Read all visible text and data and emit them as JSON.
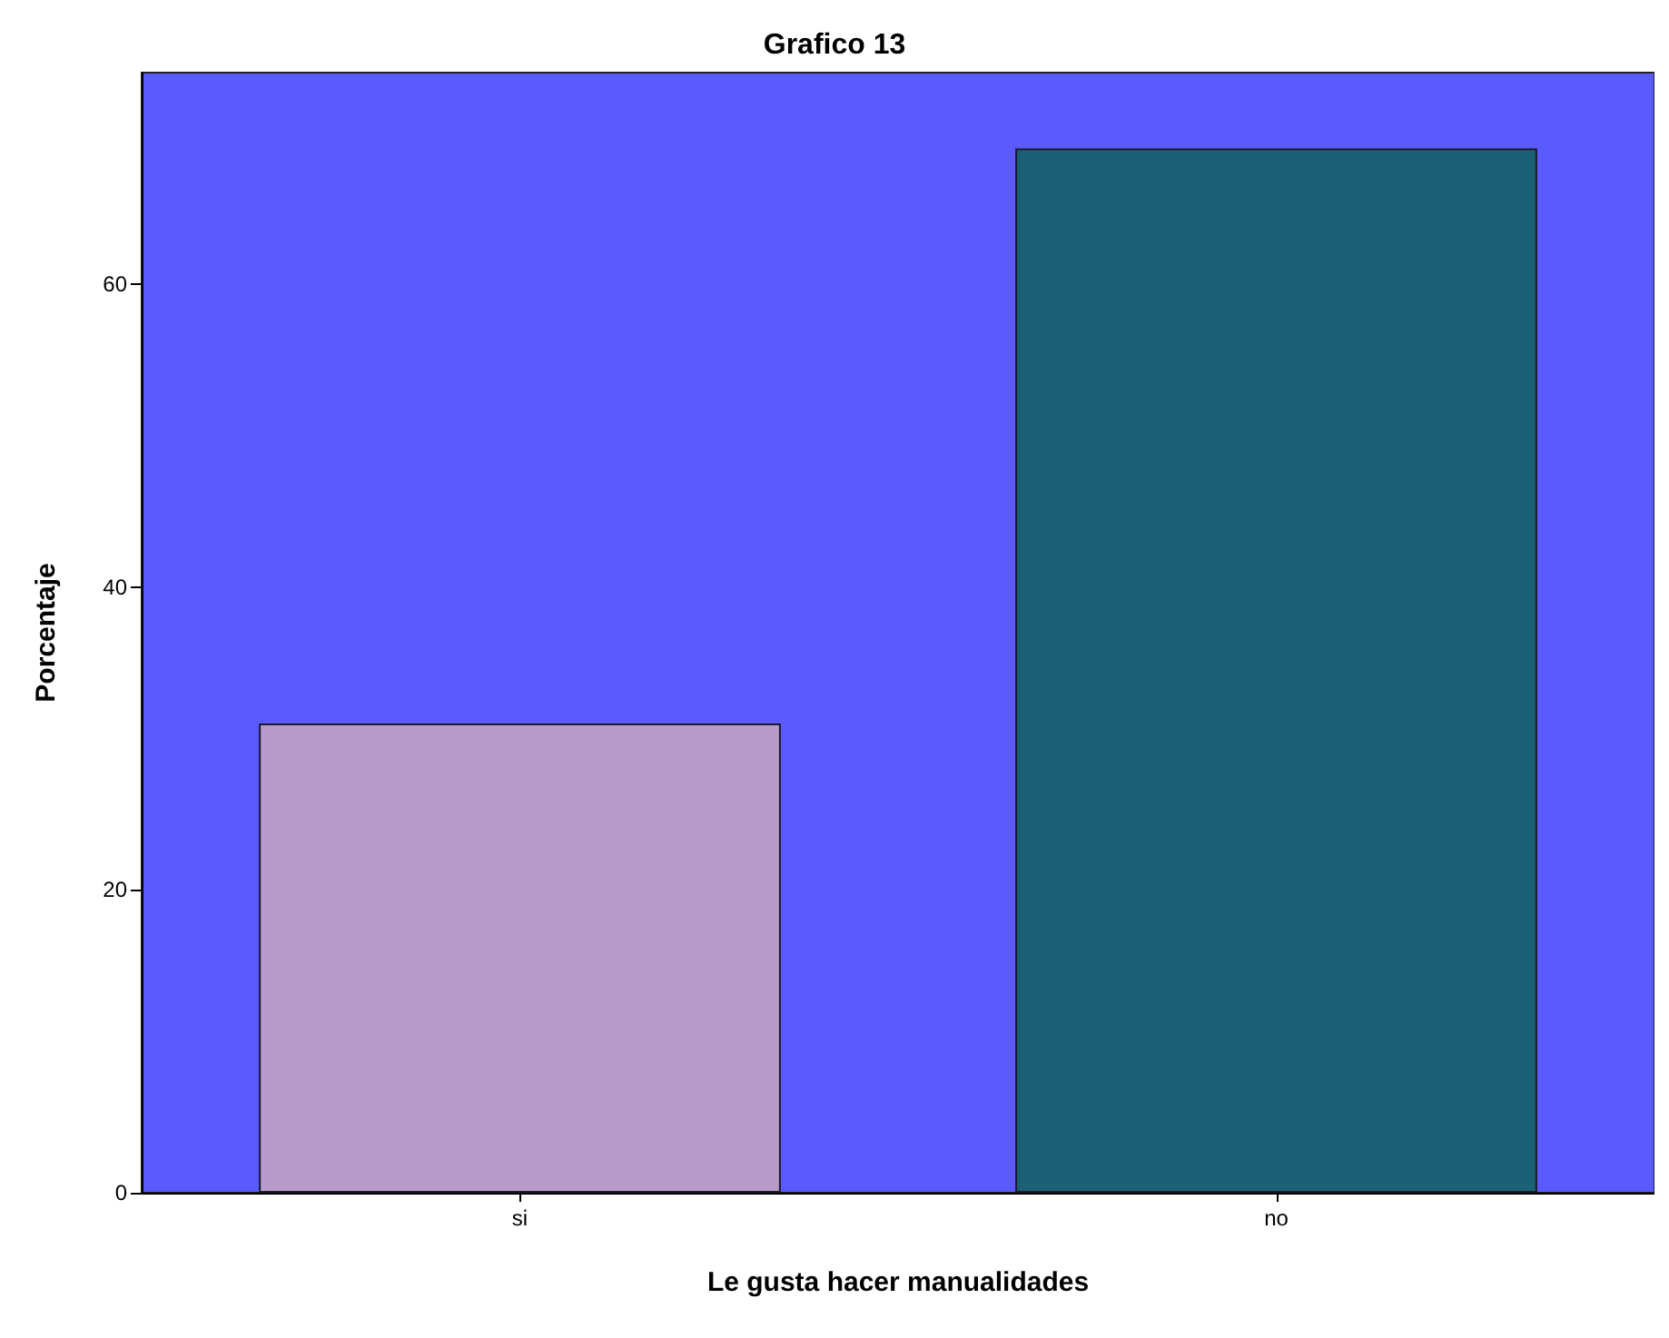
{
  "chart_data": {
    "type": "bar",
    "title": "Grafico 13",
    "xlabel": "Le gusta hacer manualidades",
    "ylabel": "Porcentaje",
    "categories": [
      "si",
      "no"
    ],
    "values": [
      31,
      69
    ],
    "colors": [
      "#b79ac8",
      "#1c6075"
    ],
    "ylim": [
      0,
      74
    ],
    "yticks": [
      0,
      20,
      40,
      60
    ],
    "grid": false
  }
}
